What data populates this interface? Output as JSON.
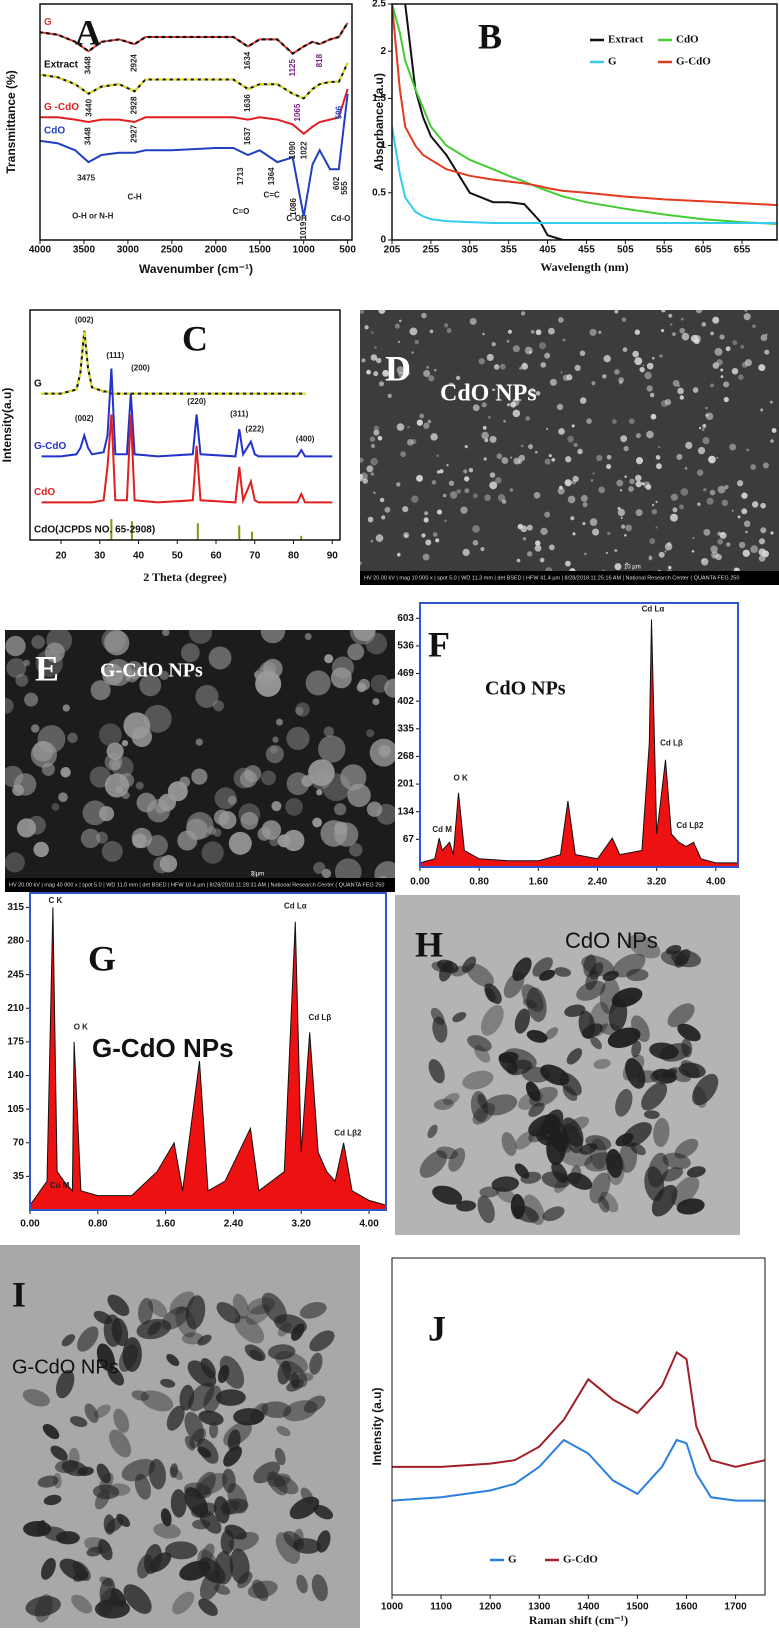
{
  "chart_data": [
    {
      "type": "line",
      "letter": "A",
      "xlabel": "Wavenumber (cm⁻¹)",
      "ylabel": "Transmittance (%)",
      "legend": "inline",
      "xlim": [
        4000,
        450
      ],
      "ylim": [
        0,
        100
      ],
      "xticks": [
        4000,
        3500,
        3000,
        2500,
        2000,
        1500,
        1000,
        500
      ],
      "x": [
        4000,
        3800,
        3600,
        3448,
        3300,
        3100,
        2924,
        2800,
        2500,
        2000,
        1800,
        1634,
        1500,
        1300,
        1125,
        1000,
        900,
        818,
        700,
        600,
        500
      ],
      "series": [
        {
          "name": "G",
          "color": "#e53935",
          "dash_color": "#111111",
          "values": [
            88,
            87,
            84,
            80,
            84,
            85,
            83,
            86,
            86,
            86,
            86,
            82,
            85,
            85,
            79,
            82,
            84,
            83,
            85,
            86,
            92
          ]
        },
        {
          "name": "Extract",
          "color": "#111111",
          "dash_color": "#e0e020",
          "values": [
            70,
            69,
            66,
            62,
            65,
            66,
            63,
            68,
            68,
            68,
            68,
            64,
            66,
            66,
            62,
            60,
            64,
            66,
            67,
            67,
            75
          ]
        },
        {
          "name": "G -CdO",
          "color": "#e02020",
          "values": [
            52,
            52,
            51,
            50,
            51,
            51,
            50,
            52,
            52,
            52,
            52,
            51,
            52,
            51,
            49,
            45,
            48,
            50,
            51,
            52,
            64
          ]
        },
        {
          "name": "CdO",
          "color": "#2040c0",
          "values": [
            42,
            41,
            38,
            33,
            36,
            37,
            37,
            38,
            38,
            39,
            39,
            36,
            38,
            33,
            35,
            10,
            32,
            38,
            30,
            30,
            62
          ]
        }
      ],
      "annotations": [
        {
          "text": "3448",
          "x": 3448,
          "y": 74,
          "vertical": true
        },
        {
          "text": "2924",
          "x": 2924,
          "y": 75,
          "vertical": true
        },
        {
          "text": "1634",
          "x": 1634,
          "y": 76,
          "vertical": true
        },
        {
          "text": "1125",
          "x": 1125,
          "y": 73,
          "vertical": true,
          "color": "#7a2080"
        },
        {
          "text": "818",
          "x": 818,
          "y": 76,
          "vertical": true,
          "color": "#7a2080"
        },
        {
          "text": "3440",
          "x": 3440,
          "y": 56,
          "vertical": true
        },
        {
          "text": "2928",
          "x": 2928,
          "y": 57,
          "vertical": true
        },
        {
          "text": "1636",
          "x": 1636,
          "y": 58,
          "vertical": true
        },
        {
          "text": "1065",
          "x": 1065,
          "y": 54,
          "vertical": true,
          "color": "#7a2080"
        },
        {
          "text": "3448",
          "x": 3448,
          "y": 44,
          "vertical": true
        },
        {
          "text": "2927",
          "x": 2927,
          "y": 45,
          "vertical": true
        },
        {
          "text": "1637",
          "x": 1637,
          "y": 44,
          "vertical": true
        },
        {
          "text": "1090",
          "x": 1120,
          "y": 38,
          "vertical": true
        },
        {
          "text": "1022",
          "x": 990,
          "y": 38,
          "vertical": true
        },
        {
          "text": "596",
          "x": 596,
          "y": 54,
          "vertical": true,
          "color": "#2040c0"
        },
        {
          "text": "3475",
          "x": 3475,
          "y": 26
        },
        {
          "text": "1713",
          "x": 1713,
          "y": 27,
          "vertical": true
        },
        {
          "text": "1364",
          "x": 1364,
          "y": 27,
          "vertical": true
        },
        {
          "text": "1086",
          "x": 1110,
          "y": 14,
          "vertical": true
        },
        {
          "text": "1019",
          "x": 1000,
          "y": 4,
          "vertical": true
        },
        {
          "text": "602",
          "x": 620,
          "y": 24,
          "vertical": true
        },
        {
          "text": "555",
          "x": 530,
          "y": 22,
          "vertical": true
        },
        {
          "text": "O-H or N-H",
          "x": 3400,
          "y": 10
        },
        {
          "text": "C-H",
          "x": 2924,
          "y": 18
        },
        {
          "text": "C=O",
          "x": 1713,
          "y": 12
        },
        {
          "text": "C=C",
          "x": 1364,
          "y": 19
        },
        {
          "text": "C-OH",
          "x": 1080,
          "y": 9
        },
        {
          "text": "Cd-O",
          "x": 580,
          "y": 9
        }
      ]
    },
    {
      "type": "line",
      "letter": "B",
      "xlabel": "Wavelength (nm)",
      "ylabel": "Absorbance (a.u)",
      "legend": "upper right",
      "xlim": [
        205,
        700
      ],
      "ylim": [
        0,
        2.5
      ],
      "xticks": [
        205,
        255,
        305,
        355,
        405,
        455,
        505,
        555,
        605,
        655
      ],
      "yticks": [
        0,
        0.5,
        1,
        1.5,
        2,
        2.5
      ],
      "x": [
        205,
        215,
        222,
        235,
        245,
        255,
        275,
        305,
        335,
        355,
        375,
        395,
        405,
        425,
        455,
        505,
        555,
        605,
        655,
        700
      ],
      "series": [
        {
          "name": "Extract",
          "color": "#111111",
          "values": [
            null,
            null,
            2.5,
            1.6,
            1.3,
            1.1,
            0.9,
            0.5,
            0.4,
            0.4,
            0.38,
            0.2,
            0.05,
            0,
            0,
            0,
            0,
            0,
            0,
            0
          ]
        },
        {
          "name": "CdO",
          "color": "#44cc33",
          "values": [
            2.5,
            2.2,
            1.9,
            1.6,
            1.4,
            1.2,
            1.0,
            0.85,
            0.75,
            0.68,
            0.62,
            0.55,
            0.52,
            0.46,
            0.4,
            0.33,
            0.27,
            0.22,
            0.19,
            0.17
          ]
        },
        {
          "name": "G",
          "color": "#33ccee",
          "values": [
            1.2,
            0.7,
            0.45,
            0.3,
            0.25,
            0.22,
            0.2,
            0.19,
            0.18,
            0.18,
            0.18,
            0.18,
            0.18,
            0.18,
            0.18,
            0.18,
            0.18,
            0.18,
            0.18,
            0.18
          ]
        },
        {
          "name": "G-CdO",
          "color": "#e03a20",
          "values": [
            2.5,
            1.6,
            1.2,
            1.0,
            0.9,
            0.85,
            0.75,
            0.68,
            0.64,
            0.62,
            0.6,
            0.57,
            0.55,
            0.52,
            0.5,
            0.46,
            0.43,
            0.41,
            0.39,
            0.37
          ]
        }
      ]
    },
    {
      "type": "line",
      "letter": "C",
      "xlabel": "2 Theta (degree)",
      "ylabel": "Intensity(a.u)",
      "legend": "inline",
      "xlim": [
        12,
        92
      ],
      "ylim": [
        0,
        110
      ],
      "xticks": [
        20,
        30,
        40,
        50,
        60,
        70,
        80,
        90
      ],
      "x": [
        15,
        20,
        24,
        25,
        26,
        27,
        28,
        31,
        32,
        33,
        34,
        37,
        38,
        39,
        45,
        54,
        55,
        56,
        65,
        66,
        67,
        69,
        70,
        71,
        81,
        82,
        83,
        90
      ],
      "series": [
        {
          "name": "G",
          "color": "#111111",
          "dash_color": "#e0e020",
          "values": [
            70,
            70,
            72,
            80,
            100,
            82,
            73,
            71,
            71,
            70,
            70,
            70,
            70,
            70,
            70,
            70,
            70,
            70,
            70,
            70,
            70,
            70,
            70,
            70,
            70,
            70,
            70,
            null
          ]
        },
        {
          "name": "G-CdO",
          "color": "#2233cc",
          "values": [
            40,
            40,
            41,
            44,
            50,
            44,
            41,
            42,
            50,
            82,
            41,
            41,
            70,
            41,
            40,
            41,
            60,
            41,
            40,
            53,
            41,
            47,
            41,
            40,
            40,
            43,
            40,
            40
          ]
        },
        {
          "name": "CdO",
          "color": "#e02020",
          "values": [
            18,
            18,
            18,
            18,
            18,
            18,
            18,
            19,
            35,
            60,
            19,
            19,
            60,
            19,
            18,
            19,
            45,
            19,
            18,
            35,
            19,
            28,
            19,
            18,
            18,
            22,
            18,
            18
          ]
        },
        {
          "name": "CdO(JCPDS NO. 65-2908)",
          "color": "#7a9a10",
          "kind": "stick",
          "x": [
            33,
            38.3,
            55.3,
            66,
            69.3,
            82
          ],
          "values": [
            10,
            9,
            8,
            7,
            4,
            2
          ]
        }
      ],
      "annotations": [
        {
          "text": "(002)",
          "x": 26,
          "y": 105
        },
        {
          "text": "(111)",
          "x": 34,
          "y": 88
        },
        {
          "text": "(200)",
          "x": 40.5,
          "y": 82
        },
        {
          "text": "(002)",
          "x": 26,
          "y": 58
        },
        {
          "text": "(220)",
          "x": 55,
          "y": 66
        },
        {
          "text": "(311)",
          "x": 66,
          "y": 60
        },
        {
          "text": "(222)",
          "x": 70,
          "y": 53
        },
        {
          "text": "(400)",
          "x": 83,
          "y": 48
        }
      ]
    },
    {
      "type": "area",
      "letter": "F",
      "subtitle": "CdO NPs",
      "xlim": [
        0,
        4.3
      ],
      "ylim": [
        0,
        640
      ],
      "xticks": [
        {
          "value": 0,
          "label": "0.00"
        },
        {
          "value": 0.8,
          "label": "0.80"
        },
        {
          "value": 1.6,
          "label": "1.60"
        },
        {
          "value": 2.4,
          "label": "2.40"
        },
        {
          "value": 3.2,
          "label": "3.20"
        },
        {
          "value": 4.0,
          "label": "4.00"
        }
      ],
      "yticks": [
        67,
        134,
        201,
        268,
        335,
        402,
        469,
        536,
        603
      ],
      "x": [
        0,
        0.2,
        0.26,
        0.3,
        0.4,
        0.45,
        0.52,
        0.6,
        0.8,
        1.2,
        1.6,
        1.9,
        2.0,
        2.1,
        2.4,
        2.6,
        2.7,
        3.0,
        3.1,
        3.13,
        3.2,
        3.28,
        3.32,
        3.4,
        3.5,
        3.6,
        3.7,
        3.8,
        4.0,
        4.3
      ],
      "series": [
        {
          "color": "#ee1111",
          "values": [
            10,
            20,
            70,
            40,
            60,
            30,
            180,
            40,
            20,
            15,
            15,
            30,
            160,
            30,
            20,
            70,
            30,
            40,
            300,
            600,
            80,
            200,
            260,
            80,
            60,
            50,
            60,
            20,
            10,
            10
          ]
        }
      ],
      "annotations": [
        {
          "text": "Cd Lα",
          "x": 3.15,
          "y": 625
        },
        {
          "text": "Cd Lβ",
          "x": 3.4,
          "y": 300
        },
        {
          "text": "Cd Lβ2",
          "x": 3.65,
          "y": 100
        },
        {
          "text": "O K",
          "x": 0.55,
          "y": 215
        },
        {
          "text": "Cd M",
          "x": 0.3,
          "y": 90
        }
      ]
    },
    {
      "type": "area",
      "letter": "G",
      "subtitle": "G-CdO NPs",
      "xlim": [
        0,
        4.2
      ],
      "ylim": [
        0,
        330
      ],
      "xticks": [
        {
          "value": 0,
          "label": "0.00"
        },
        {
          "value": 0.8,
          "label": "0.80"
        },
        {
          "value": 1.6,
          "label": "1.60"
        },
        {
          "value": 2.4,
          "label": "2.40"
        },
        {
          "value": 3.2,
          "label": "3.20"
        },
        {
          "value": 4.0,
          "label": "4.00"
        }
      ],
      "yticks": [
        35,
        70,
        105,
        140,
        175,
        210,
        245,
        280,
        315
      ],
      "x": [
        0,
        0.2,
        0.27,
        0.32,
        0.4,
        0.5,
        0.52,
        0.6,
        0.8,
        1.2,
        1.5,
        1.7,
        1.8,
        2.0,
        2.1,
        2.3,
        2.6,
        2.7,
        3.0,
        3.13,
        3.2,
        3.3,
        3.4,
        3.5,
        3.6,
        3.7,
        3.8,
        4.0,
        4.2
      ],
      "series": [
        {
          "color": "#ee1111",
          "values": [
            5,
            30,
            315,
            40,
            30,
            20,
            175,
            20,
            15,
            15,
            40,
            70,
            20,
            155,
            20,
            30,
            85,
            20,
            40,
            300,
            60,
            185,
            60,
            40,
            30,
            70,
            20,
            10,
            5
          ]
        }
      ],
      "annotations": [
        {
          "text": "C  K",
          "x": 0.3,
          "y": 322
        },
        {
          "text": "O  K",
          "x": 0.6,
          "y": 190
        },
        {
          "text": "Cd M",
          "x": 0.35,
          "y": 25
        },
        {
          "text": "Cd Lα",
          "x": 3.13,
          "y": 316
        },
        {
          "text": "Cd Lβ",
          "x": 3.42,
          "y": 200
        },
        {
          "text": "Cd Lβ2",
          "x": 3.75,
          "y": 80
        }
      ]
    },
    {
      "type": "line",
      "letter": "J",
      "xlabel": "Raman shift (cm⁻¹)",
      "ylabel": "Intensity (a.u)",
      "legend": "lower center",
      "xlim": [
        1000,
        1760
      ],
      "ylim": [
        0,
        100
      ],
      "xticks": [
        1000,
        1100,
        1200,
        1300,
        1400,
        1500,
        1600,
        1700
      ],
      "x": [
        1000,
        1100,
        1200,
        1250,
        1300,
        1350,
        1400,
        1450,
        1500,
        1550,
        1580,
        1600,
        1620,
        1650,
        1700,
        1760
      ],
      "series": [
        {
          "name": "G",
          "color": "#2a7fe0",
          "values": [
            28,
            29,
            31,
            33,
            38,
            46,
            42,
            34,
            30,
            38,
            46,
            45,
            36,
            29,
            28,
            28
          ]
        },
        {
          "name": "G-CdO",
          "color": "#a0202a",
          "values": [
            38,
            38,
            39,
            40,
            44,
            52,
            64,
            58,
            54,
            62,
            72,
            70,
            50,
            40,
            38,
            40
          ]
        }
      ]
    }
  ],
  "images": [
    {
      "letter": "D",
      "label": "CdO NPs",
      "info": "HV 20.00 kV | mag 10 000 x | spot 5.0 | WD 11.3 mm | det BSED | HFW 41.4 µm | 8/28/2018 11:25:16 AM | National Research Center ( QUANTA FEG 250",
      "scale": "10 µm"
    },
    {
      "letter": "E",
      "label": "G-CdO NPs",
      "info": "HV 20.00 kV | mag 40 000 x | spot 5.0 | WD 11.0 mm | det BSED | HFW 10.4 µm | 8/28/2018 11:28:31 AM | National Research Center ( QUANTA FEG 250",
      "scale": "3 µm"
    },
    {
      "letter": "H",
      "label": "CdO NPs"
    },
    {
      "letter": "I",
      "label": "G-CdO NPs"
    }
  ]
}
